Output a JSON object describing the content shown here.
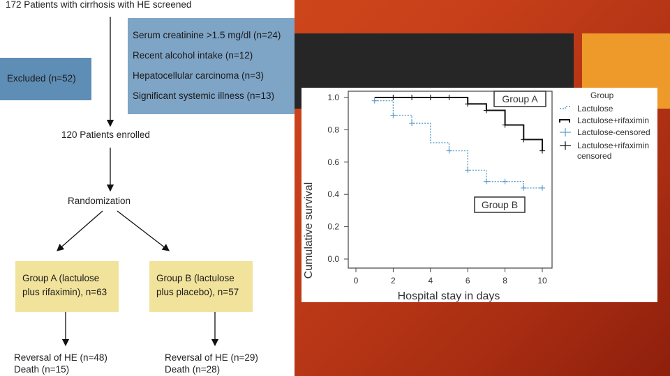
{
  "flowchart": {
    "screened": "172 Patients with cirrhosis with HE screened",
    "exclusion_reasons": [
      "Serum creatinine >1.5 mg/dl (n=24)",
      "Recent alcohol intake (n=12)",
      "Hepatocellular carcinoma (n=3)",
      "Significant systemic illness (n=13)"
    ],
    "excluded": "Excluded (n=52)",
    "enrolled": "120 Patients enrolled",
    "randomization": "Randomization",
    "group_a": {
      "line1": "Group A (lactulose",
      "line2": "plus rifaximin), n=63"
    },
    "group_b": {
      "line1": "Group B (lactulose",
      "line2": "plus placebo), n=57"
    },
    "outcome_a": {
      "line1": "Reversal of HE (n=48)",
      "line2": "Death (n=15)"
    },
    "outcome_b": {
      "line1": "Reversal of HE (n=29)",
      "line2": "Death (n=28)"
    }
  },
  "colors": {
    "excluded_box": "#5e8db5",
    "reasons_box": "#7ea4c6",
    "group_box": "#f2e39c",
    "lactulose_line": "#5a9ec9",
    "rifaximin_line": "#111111"
  },
  "chart_data": {
    "type": "line",
    "title": "",
    "xlabel": "Hospital stay in days",
    "ylabel": "Cumulative survival",
    "xlim": [
      0,
      10
    ],
    "ylim": [
      0,
      1.0
    ],
    "x_ticks": [
      "0",
      "2",
      "4",
      "6",
      "8",
      "10"
    ],
    "y_ticks": [
      "0.0",
      "0.2",
      "0.4",
      "0.6",
      "0.8",
      "1.0"
    ],
    "legend_title": "Group",
    "legend": [
      "Lactulose",
      "Lactulose+rifaximin",
      "Lactulose-censored",
      "Lactulose+rifaximin",
      "censored"
    ],
    "annotations": [
      "Group A",
      "Group B"
    ],
    "series": [
      {
        "name": "Lactulose",
        "steps": [
          [
            1,
            0.98
          ],
          [
            2,
            0.89
          ],
          [
            3,
            0.84
          ],
          [
            4,
            0.72
          ],
          [
            5,
            0.67
          ],
          [
            6,
            0.55
          ],
          [
            7,
            0.48
          ],
          [
            9,
            0.44
          ],
          [
            10,
            0.44
          ]
        ],
        "censored": [
          [
            1,
            0.98
          ],
          [
            2,
            0.89
          ],
          [
            3,
            0.84
          ],
          [
            5,
            0.67
          ],
          [
            6,
            0.55
          ],
          [
            7,
            0.48
          ],
          [
            8,
            0.48
          ],
          [
            9,
            0.44
          ],
          [
            10,
            0.44
          ]
        ]
      },
      {
        "name": "Lactulose+rifaximin",
        "steps": [
          [
            1,
            1.0
          ],
          [
            6,
            0.96
          ],
          [
            7,
            0.92
          ],
          [
            8,
            0.83
          ],
          [
            9,
            0.74
          ],
          [
            10,
            0.67
          ]
        ],
        "censored": [
          [
            2,
            1.0
          ],
          [
            3,
            1.0
          ],
          [
            4,
            1.0
          ],
          [
            5,
            1.0
          ],
          [
            6,
            0.96
          ],
          [
            7,
            0.92
          ],
          [
            8,
            0.83
          ],
          [
            9,
            0.74
          ],
          [
            10,
            0.67
          ]
        ]
      }
    ]
  }
}
